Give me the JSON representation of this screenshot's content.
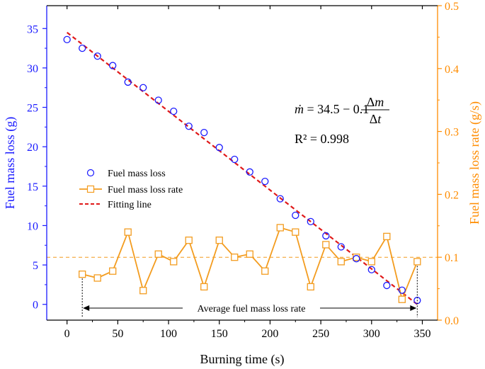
{
  "chart_data": {
    "type": "scatter+line",
    "xlabel": "Burning time (s)",
    "ylabel_left": "Fuel mass loss (g)",
    "ylabel_right": "Fuel mass loss rate (g/s)",
    "x_ticks": [
      0,
      50,
      100,
      150,
      200,
      250,
      300,
      350
    ],
    "y_left_ticks": [
      0,
      5,
      10,
      15,
      20,
      25,
      30,
      35
    ],
    "y_right_ticks": [
      0.0,
      0.1,
      0.2,
      0.3,
      0.4,
      0.5
    ],
    "xlim": [
      -20,
      365
    ],
    "ylim_left": [
      -2,
      37.9
    ],
    "ylim_right": [
      0.0,
      0.5
    ],
    "colors": {
      "left_axis": "#1a1aff",
      "right_axis": "#ff8c00",
      "mass_marker": "#1a1aff",
      "rate_line": "#f39c1f",
      "fit_line": "#e01919",
      "avg_line": "#f39c1f"
    },
    "series": [
      {
        "name": "Fuel mass loss",
        "axis": "left",
        "marker": "circle",
        "x": [
          0,
          15,
          30,
          45,
          60,
          75,
          90,
          105,
          120,
          135,
          150,
          165,
          180,
          195,
          210,
          225,
          240,
          255,
          270,
          285,
          300,
          315,
          330,
          345
        ],
        "y": [
          33.6,
          32.5,
          31.5,
          30.3,
          28.2,
          27.5,
          25.9,
          24.5,
          22.6,
          21.8,
          19.9,
          18.4,
          16.8,
          15.6,
          13.4,
          11.3,
          10.5,
          8.7,
          7.3,
          5.8,
          4.4,
          2.4,
          1.8,
          0.5
        ]
      },
      {
        "name": "Fuel mass loss rate",
        "axis": "right",
        "marker": "square",
        "x": [
          15,
          30,
          45,
          60,
          75,
          90,
          105,
          120,
          135,
          150,
          165,
          180,
          195,
          210,
          225,
          240,
          255,
          270,
          285,
          300,
          315,
          330,
          345
        ],
        "y": [
          0.073,
          0.067,
          0.078,
          0.14,
          0.047,
          0.105,
          0.093,
          0.127,
          0.053,
          0.127,
          0.1,
          0.105,
          0.078,
          0.147,
          0.14,
          0.053,
          0.12,
          0.093,
          0.1,
          0.093,
          0.133,
          0.033,
          0.093
        ]
      },
      {
        "name": "Fitting line",
        "axis": "left",
        "style": "dashed",
        "x": [
          0,
          345
        ],
        "y": [
          34.5,
          0.0
        ]
      }
    ],
    "average_rate": 0.1,
    "annotations": {
      "equation": "ṁ = 34.5 − 0.1 Δm/Δt",
      "r_squared": "R² = 0.998",
      "average_label": "Average fuel mass loss rate",
      "average_span_x": [
        15,
        345
      ]
    }
  }
}
